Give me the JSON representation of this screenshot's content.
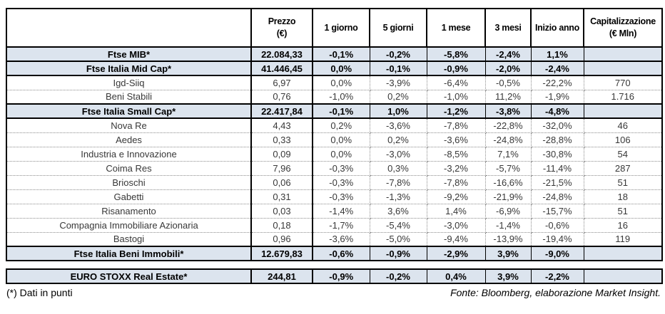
{
  "colors": {
    "highlight_row_bg": "#dce4ee",
    "grid_line": "#000000",
    "dotted_line": "#8c8c8c",
    "stock_text": "#383838"
  },
  "table": {
    "headers": [
      {
        "line1": "Prezzo",
        "line2": "(€)"
      },
      {
        "line1": "1 giorno",
        "line2": ""
      },
      {
        "line1": "5 giorni",
        "line2": ""
      },
      {
        "line1": "1 mese",
        "line2": ""
      },
      {
        "line1": "3 mesi",
        "line2": ""
      },
      {
        "line1": "Inizio anno",
        "line2": ""
      },
      {
        "line1": "Capitalizzazione",
        "line2": "(€ Mln)"
      }
    ],
    "rows": [
      {
        "type": "index",
        "name": "Ftse MIB*",
        "prezzo": "22.084,33",
        "d1": "-0,1%",
        "d5": "-0,2%",
        "m1": "-5,8%",
        "m3": "-2,4%",
        "ytd": "1,1%",
        "cap": ""
      },
      {
        "type": "index",
        "name": "Ftse Italia Mid Cap*",
        "prezzo": "41.446,45",
        "d1": "0,0%",
        "d5": "-0,1%",
        "m1": "-0,9%",
        "m3": "-2,0%",
        "ytd": "-2,4%",
        "cap": ""
      },
      {
        "type": "stock",
        "name": "Igd-Siiq",
        "prezzo": "6,97",
        "d1": "0,0%",
        "d5": "-3,9%",
        "m1": "-6,4%",
        "m3": "-0,5%",
        "ytd": "-22,2%",
        "cap": "770"
      },
      {
        "type": "stock",
        "name": "Beni Stabili",
        "prezzo": "0,76",
        "d1": "-1,0%",
        "d5": "0,2%",
        "m1": "-1,0%",
        "m3": "11,2%",
        "ytd": "-1,9%",
        "cap": "1.716"
      },
      {
        "type": "index",
        "name": "Ftse Italia Small Cap*",
        "prezzo": "22.417,84",
        "d1": "-0,1%",
        "d5": "1,0%",
        "m1": "-1,2%",
        "m3": "-3,8%",
        "ytd": "-4,8%",
        "cap": ""
      },
      {
        "type": "stock",
        "name": "Nova Re",
        "prezzo": "4,43",
        "d1": "0,2%",
        "d5": "-3,6%",
        "m1": "-7,8%",
        "m3": "-22,8%",
        "ytd": "-32,0%",
        "cap": "46"
      },
      {
        "type": "stock",
        "name": "Aedes",
        "prezzo": "0,33",
        "d1": "0,0%",
        "d5": "0,2%",
        "m1": "-3,6%",
        "m3": "-24,8%",
        "ytd": "-28,8%",
        "cap": "106"
      },
      {
        "type": "stock",
        "name": "Industria e Innovazione",
        "prezzo": "0,09",
        "d1": "0,0%",
        "d5": "-3,0%",
        "m1": "-8,5%",
        "m3": "7,1%",
        "ytd": "-30,8%",
        "cap": "54"
      },
      {
        "type": "stock",
        "name": "Coima Res",
        "prezzo": "7,96",
        "d1": "-0,3%",
        "d5": "0,3%",
        "m1": "-3,2%",
        "m3": "-5,7%",
        "ytd": "-11,4%",
        "cap": "287"
      },
      {
        "type": "stock",
        "name": "Brioschi",
        "prezzo": "0,06",
        "d1": "-0,3%",
        "d5": "-7,8%",
        "m1": "-7,8%",
        "m3": "-16,6%",
        "ytd": "-21,5%",
        "cap": "51"
      },
      {
        "type": "stock",
        "name": "Gabetti",
        "prezzo": "0,31",
        "d1": "-0,3%",
        "d5": "-1,3%",
        "m1": "-9,2%",
        "m3": "-21,9%",
        "ytd": "-24,8%",
        "cap": "18"
      },
      {
        "type": "stock",
        "name": "Risanamento",
        "prezzo": "0,03",
        "d1": "-1,4%",
        "d5": "3,6%",
        "m1": "1,4%",
        "m3": "-6,9%",
        "ytd": "-15,7%",
        "cap": "51"
      },
      {
        "type": "stock",
        "name": "Compagnia Immobiliare Azionaria",
        "prezzo": "0,18",
        "d1": "-1,7%",
        "d5": "-5,4%",
        "m1": "-3,0%",
        "m3": "-1,4%",
        "ytd": "-0,6%",
        "cap": "16"
      },
      {
        "type": "stock",
        "name": "Bastogi",
        "prezzo": "0,96",
        "d1": "-3,6%",
        "d5": "-5,0%",
        "m1": "-9,4%",
        "m3": "-13,9%",
        "ytd": "-19,4%",
        "cap": "119"
      },
      {
        "type": "index",
        "name": "Ftse Italia Beni Immobili*",
        "prezzo": "12.679,83",
        "d1": "-0,6%",
        "d5": "-0,9%",
        "m1": "-2,9%",
        "m3": "3,9%",
        "ytd": "-9,0%",
        "cap": ""
      }
    ]
  },
  "euro_table": {
    "row": {
      "type": "index",
      "name": "EURO STOXX Real Estate*",
      "prezzo": "244,81",
      "d1": "-0,9%",
      "d5": "-0,2%",
      "m1": "0,4%",
      "m3": "3,9%",
      "ytd": "-2,2%",
      "cap": ""
    }
  },
  "footer": {
    "note": "(*) Dati in punti",
    "source": "Fonte: Bloomberg, elaborazione Market Insight."
  },
  "chart_data": {
    "type": "table",
    "title": "",
    "columns": [
      "",
      "Prezzo (€)",
      "1 giorno",
      "5 giorni",
      "1 mese",
      "3 mesi",
      "Inizio anno",
      "Capitalizzazione (€ Mln)"
    ],
    "rows": [
      [
        "Ftse MIB*",
        "22.084,33",
        "-0,1%",
        "-0,2%",
        "-5,8%",
        "-2,4%",
        "1,1%",
        ""
      ],
      [
        "Ftse Italia Mid Cap*",
        "41.446,45",
        "0,0%",
        "-0,1%",
        "-0,9%",
        "-2,0%",
        "-2,4%",
        ""
      ],
      [
        "Igd-Siiq",
        "6,97",
        "0,0%",
        "-3,9%",
        "-6,4%",
        "-0,5%",
        "-22,2%",
        "770"
      ],
      [
        "Beni Stabili",
        "0,76",
        "-1,0%",
        "0,2%",
        "-1,0%",
        "11,2%",
        "-1,9%",
        "1.716"
      ],
      [
        "Ftse Italia Small Cap*",
        "22.417,84",
        "-0,1%",
        "1,0%",
        "-1,2%",
        "-3,8%",
        "-4,8%",
        ""
      ],
      [
        "Nova Re",
        "4,43",
        "0,2%",
        "-3,6%",
        "-7,8%",
        "-22,8%",
        "-32,0%",
        "46"
      ],
      [
        "Aedes",
        "0,33",
        "0,0%",
        "0,2%",
        "-3,6%",
        "-24,8%",
        "-28,8%",
        "106"
      ],
      [
        "Industria e Innovazione",
        "0,09",
        "0,0%",
        "-3,0%",
        "-8,5%",
        "7,1%",
        "-30,8%",
        "54"
      ],
      [
        "Coima Res",
        "7,96",
        "-0,3%",
        "0,3%",
        "-3,2%",
        "-5,7%",
        "-11,4%",
        "287"
      ],
      [
        "Brioschi",
        "0,06",
        "-0,3%",
        "-7,8%",
        "-7,8%",
        "-16,6%",
        "-21,5%",
        "51"
      ],
      [
        "Gabetti",
        "0,31",
        "-0,3%",
        "-1,3%",
        "-9,2%",
        "-21,9%",
        "-24,8%",
        "18"
      ],
      [
        "Risanamento",
        "0,03",
        "-1,4%",
        "3,6%",
        "1,4%",
        "-6,9%",
        "-15,7%",
        "51"
      ],
      [
        "Compagnia Immobiliare Azionaria",
        "0,18",
        "-1,7%",
        "-5,4%",
        "-3,0%",
        "-1,4%",
        "-0,6%",
        "16"
      ],
      [
        "Bastogi",
        "0,96",
        "-3,6%",
        "-5,0%",
        "-9,4%",
        "-13,9%",
        "-19,4%",
        "119"
      ],
      [
        "Ftse Italia Beni Immobili*",
        "12.679,83",
        "-0,6%",
        "-0,9%",
        "-2,9%",
        "3,9%",
        "-9,0%",
        ""
      ],
      [
        "EURO STOXX Real Estate*",
        "244,81",
        "-0,9%",
        "-0,2%",
        "0,4%",
        "3,9%",
        "-2,2%",
        ""
      ]
    ],
    "highlighted_rows": [
      0,
      1,
      4,
      14,
      15
    ],
    "notes": [
      "(*) Dati in punti",
      "Fonte: Bloomberg, elaborazione Market Insight."
    ]
  }
}
